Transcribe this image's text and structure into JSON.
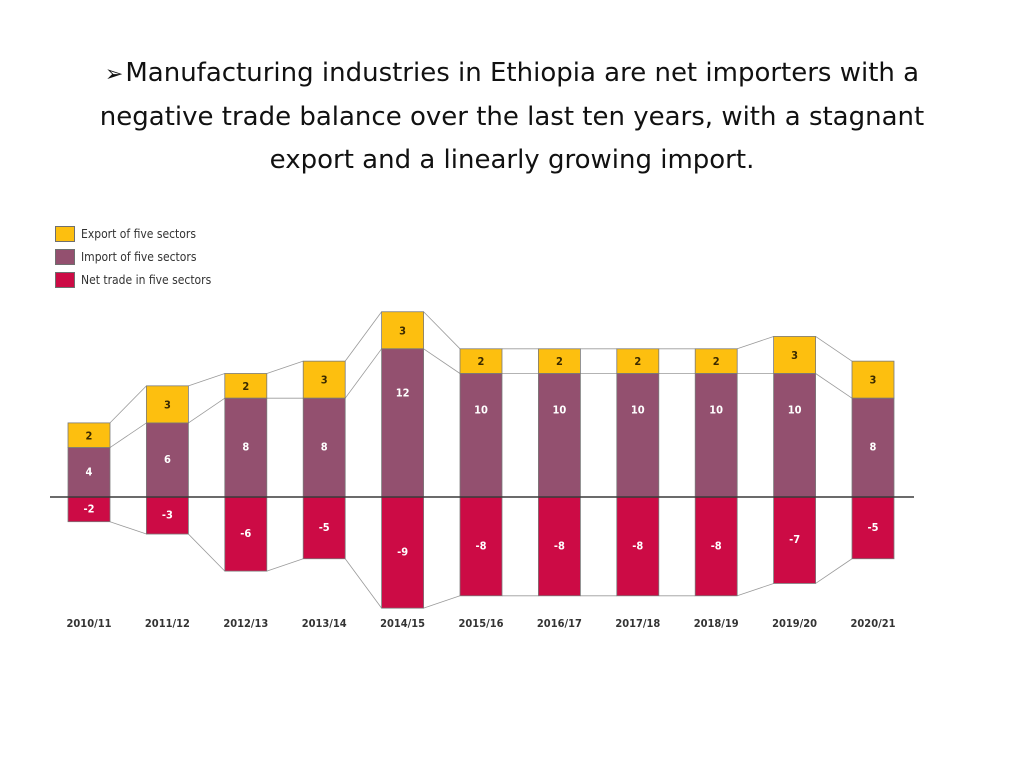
{
  "slide": {
    "bullet_icon": "arrow-bullet-icon",
    "bullet_glyph": "➢",
    "text": "Manufacturing industries in Ethiopia are net importers with a negative trade balance over the last ten years, with a stagnant export and a linearly growing import."
  },
  "chart_data": {
    "type": "bar",
    "stacked": true,
    "title": "",
    "xlabel": "",
    "ylabel": "",
    "categories": [
      "2010/11",
      "2011/12",
      "2012/13",
      "2013/14",
      "2014/15",
      "2015/16",
      "2016/17",
      "2017/18",
      "2018/19",
      "2019/20",
      "2020/21"
    ],
    "series": [
      {
        "name": "Export of five sectors",
        "color": "#fdbf0f",
        "values": [
          2,
          3,
          2,
          3,
          3,
          2,
          2,
          2,
          2,
          3,
          3
        ]
      },
      {
        "name": "Import of five sectors",
        "color": "#93506f",
        "values": [
          4,
          6,
          8,
          8,
          12,
          10,
          10,
          10,
          10,
          10,
          8
        ]
      },
      {
        "name": "Net trade in five sectors",
        "color": "#cc0b45",
        "values": [
          -2,
          -3,
          -6,
          -5,
          -9,
          -8,
          -8,
          -8,
          -8,
          -7,
          -5
        ]
      }
    ],
    "legend_position": "top-left",
    "grid": false,
    "connector_lines": true,
    "zero_line": true
  }
}
